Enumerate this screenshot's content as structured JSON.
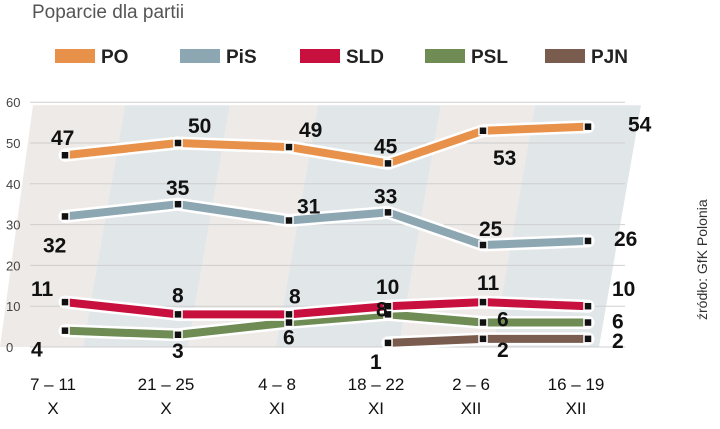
{
  "source": "źródło: GfK Polonia",
  "chart_data": {
    "type": "line",
    "title": "Poparcie dla partii",
    "categories": [
      [
        "7 – 11",
        "X"
      ],
      [
        "21 – 25",
        "X"
      ],
      [
        "4 – 8",
        "XI"
      ],
      [
        "18 – 22",
        "XI"
      ],
      [
        "2 – 6",
        "XII"
      ],
      [
        "16 – 19",
        "XII"
      ]
    ],
    "ylim": [
      0,
      60
    ],
    "yticks": [
      0,
      10,
      20,
      30,
      40,
      50,
      60
    ],
    "legend": "top",
    "series": [
      {
        "name": "PO",
        "color": "#e8914a",
        "values": [
          47,
          50,
          49,
          45,
          53,
          54
        ],
        "labels": [
          "47",
          "50",
          "49",
          "45",
          "53",
          "54"
        ]
      },
      {
        "name": "PiS",
        "color": "#8ca6b2",
        "values": [
          32,
          35,
          31,
          33,
          25,
          26
        ],
        "labels": [
          "32",
          "35",
          "31",
          "33",
          "25",
          "26"
        ]
      },
      {
        "name": "SLD",
        "color": "#c8103e",
        "values": [
          11,
          8,
          8,
          10,
          11,
          10
        ],
        "labels": [
          "11",
          "8",
          "8",
          "10",
          "11",
          "10"
        ]
      },
      {
        "name": "PSL",
        "color": "#6f8c55",
        "values": [
          4,
          3,
          6,
          8,
          6,
          6
        ],
        "labels": [
          "4",
          "3",
          "6",
          "8",
          "6",
          "6"
        ]
      },
      {
        "name": "PJN",
        "color": "#7a5c4e",
        "values": [
          null,
          null,
          null,
          1,
          2,
          2
        ],
        "labels": [
          null,
          null,
          null,
          "1",
          "2",
          "2"
        ]
      }
    ]
  }
}
